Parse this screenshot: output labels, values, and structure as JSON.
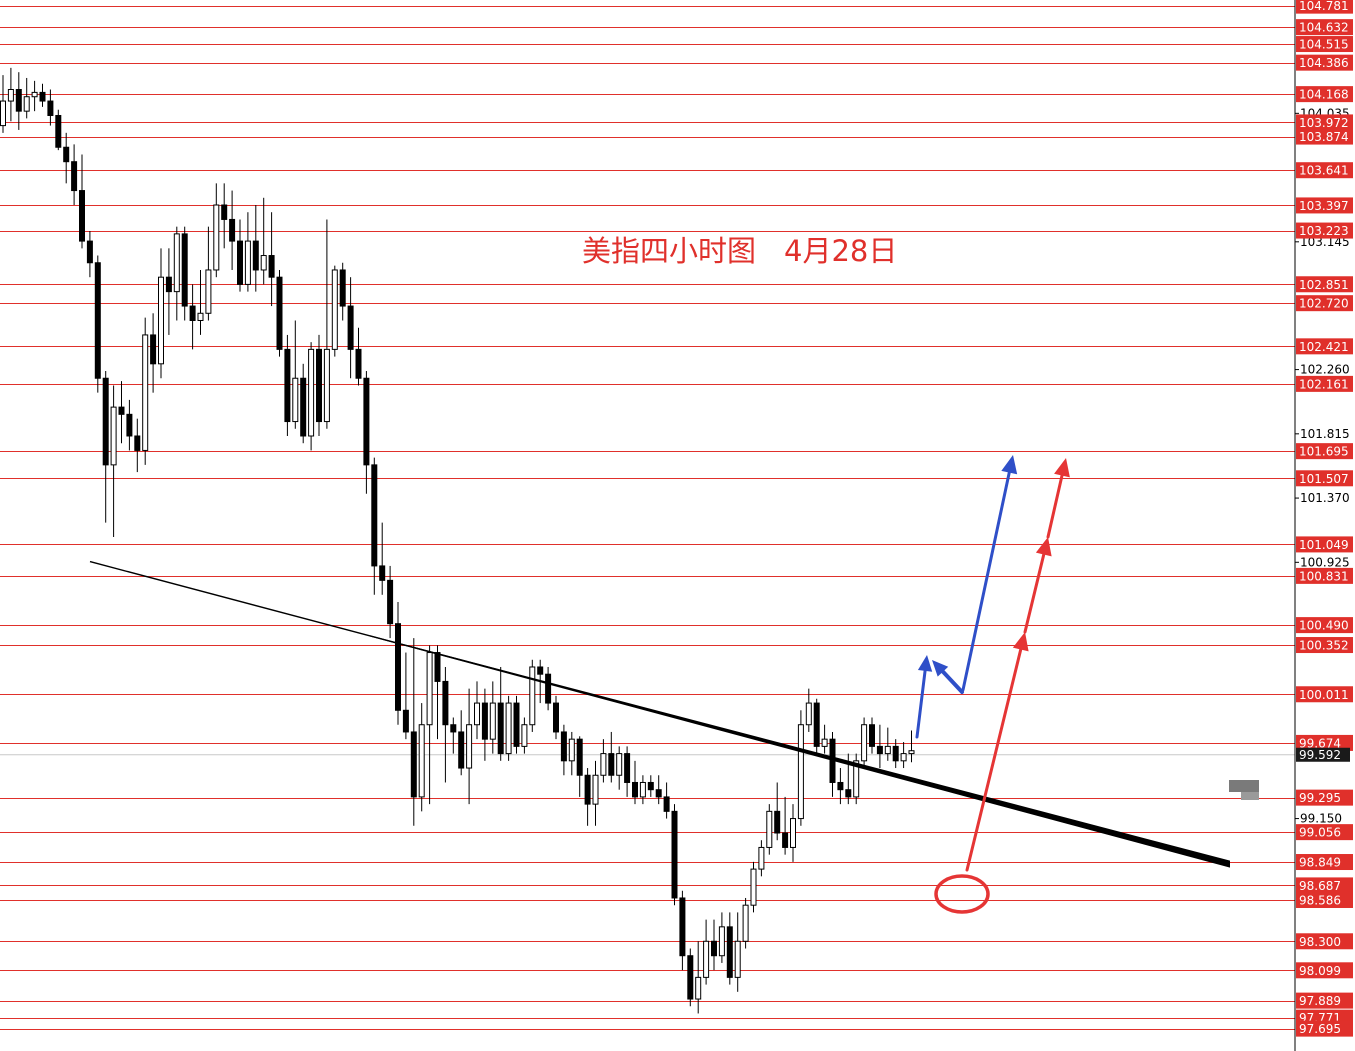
{
  "chart_data": {
    "type": "candlestick",
    "title": "美指四小时图",
    "subtitle": "4月28日",
    "ylim": [
      97.54,
      104.82
    ],
    "current_price": "99.592",
    "price_axis_ticks": [
      "104.035",
      "103.145",
      "102.260",
      "101.815",
      "101.370",
      "100.925",
      "99.150"
    ],
    "levels": [
      "104.781",
      "104.632",
      "104.515",
      "104.386",
      "104.168",
      "103.972",
      "103.874",
      "103.641",
      "103.397",
      "103.223",
      "102.851",
      "102.720",
      "102.421",
      "102.161",
      "101.695",
      "101.507",
      "101.049",
      "100.831",
      "100.490",
      "100.352",
      "100.011",
      "99.674",
      "99.295",
      "99.056",
      "98.849",
      "98.687",
      "98.586",
      "98.300",
      "98.099",
      "97.889",
      "97.771",
      "97.695"
    ],
    "trendline": {
      "from": [
        0,
        101.09
      ],
      "to": [
        115,
        99.42
      ]
    },
    "candles": [
      [
        103.95,
        104.12,
        103.9,
        104.3
      ],
      [
        104.12,
        104.2,
        103.98,
        104.35
      ],
      [
        104.2,
        104.05,
        103.92,
        104.32
      ],
      [
        104.05,
        104.15,
        104.0,
        104.28
      ],
      [
        104.15,
        104.18,
        104.05,
        104.26
      ],
      [
        104.18,
        104.12,
        104.08,
        104.24
      ],
      [
        104.12,
        104.02,
        103.95,
        104.2
      ],
      [
        104.02,
        103.8,
        103.78,
        104.06
      ],
      [
        103.8,
        103.7,
        103.55,
        103.9
      ],
      [
        103.7,
        103.5,
        103.4,
        103.82
      ],
      [
        103.5,
        103.15,
        103.1,
        103.75
      ],
      [
        103.15,
        103.0,
        102.9,
        103.22
      ],
      [
        103.0,
        102.2,
        102.1,
        103.05
      ],
      [
        102.2,
        101.6,
        101.2,
        102.25
      ],
      [
        101.6,
        102.0,
        101.1,
        102.15
      ],
      [
        102.0,
        101.95,
        101.75,
        102.18
      ],
      [
        101.95,
        101.8,
        101.7,
        102.05
      ],
      [
        101.8,
        101.7,
        101.55,
        101.92
      ],
      [
        101.7,
        102.5,
        101.6,
        102.62
      ],
      [
        102.5,
        102.3,
        102.1,
        102.65
      ],
      [
        102.3,
        102.9,
        102.2,
        103.1
      ],
      [
        102.9,
        102.8,
        102.5,
        103.1
      ],
      [
        102.8,
        103.2,
        102.6,
        103.25
      ],
      [
        103.2,
        102.7,
        102.6,
        103.25
      ],
      [
        102.7,
        102.6,
        102.4,
        102.85
      ],
      [
        102.6,
        102.65,
        102.5,
        102.95
      ],
      [
        102.65,
        102.95,
        102.6,
        103.25
      ],
      [
        102.95,
        103.4,
        102.9,
        103.55
      ],
      [
        103.4,
        103.3,
        103.1,
        103.55
      ],
      [
        103.3,
        103.15,
        102.95,
        103.5
      ],
      [
        103.15,
        102.85,
        102.8,
        103.3
      ],
      [
        102.85,
        103.15,
        102.8,
        103.35
      ],
      [
        103.15,
        102.95,
        102.8,
        103.4
      ],
      [
        102.95,
        103.05,
        102.85,
        103.45
      ],
      [
        103.05,
        102.9,
        102.7,
        103.35
      ],
      [
        102.9,
        102.4,
        102.35,
        102.95
      ],
      [
        102.4,
        101.9,
        101.8,
        102.5
      ],
      [
        101.9,
        102.2,
        101.85,
        102.6
      ],
      [
        102.2,
        101.8,
        101.75,
        102.3
      ],
      [
        101.8,
        102.4,
        101.7,
        102.45
      ],
      [
        102.4,
        101.9,
        101.8,
        102.5
      ],
      [
        101.9,
        102.4,
        101.85,
        103.3
      ],
      [
        102.4,
        102.95,
        102.35,
        102.98
      ],
      [
        102.95,
        102.7,
        102.6,
        103.0
      ],
      [
        102.7,
        102.4,
        102.2,
        102.9
      ],
      [
        102.4,
        102.2,
        102.15,
        102.55
      ],
      [
        102.2,
        101.6,
        101.4,
        102.25
      ],
      [
        101.6,
        100.9,
        100.7,
        101.65
      ],
      [
        100.9,
        100.8,
        100.7,
        101.2
      ],
      [
        100.8,
        100.5,
        100.4,
        100.9
      ],
      [
        100.5,
        99.9,
        99.8,
        100.65
      ],
      [
        99.9,
        99.75,
        99.7,
        100.3
      ],
      [
        99.75,
        99.3,
        99.1,
        100.4
      ],
      [
        99.3,
        99.8,
        99.2,
        99.95
      ],
      [
        99.8,
        100.3,
        99.25,
        100.35
      ],
      [
        100.3,
        100.1,
        99.7,
        100.35
      ],
      [
        100.1,
        99.8,
        99.4,
        100.2
      ],
      [
        99.8,
        99.75,
        99.6,
        99.85
      ],
      [
        99.75,
        99.5,
        99.45,
        99.9
      ],
      [
        99.5,
        99.8,
        99.25,
        100.05
      ],
      [
        99.8,
        99.95,
        99.7,
        100.1
      ],
      [
        99.95,
        99.7,
        99.55,
        100.05
      ],
      [
        99.7,
        99.95,
        99.6,
        100.1
      ],
      [
        99.95,
        99.6,
        99.55,
        100.2
      ],
      [
        99.6,
        99.95,
        99.55,
        100.0
      ],
      [
        99.95,
        99.65,
        99.6,
        100.0
      ],
      [
        99.65,
        99.8,
        99.6,
        99.85
      ],
      [
        99.8,
        100.2,
        99.75,
        100.25
      ],
      [
        100.2,
        100.15,
        99.95,
        100.25
      ],
      [
        100.15,
        99.95,
        99.9,
        100.2
      ],
      [
        99.95,
        99.75,
        99.7,
        100.0
      ],
      [
        99.75,
        99.55,
        99.45,
        99.8
      ],
      [
        99.55,
        99.7,
        99.45,
        99.75
      ],
      [
        99.7,
        99.45,
        99.3,
        99.72
      ],
      [
        99.45,
        99.25,
        99.1,
        99.5
      ],
      [
        99.25,
        99.45,
        99.1,
        99.55
      ],
      [
        99.45,
        99.6,
        99.4,
        99.7
      ],
      [
        99.6,
        99.45,
        99.4,
        99.75
      ],
      [
        99.45,
        99.6,
        99.35,
        99.65
      ],
      [
        99.6,
        99.4,
        99.3,
        99.65
      ],
      [
        99.4,
        99.3,
        99.25,
        99.55
      ],
      [
        99.3,
        99.4,
        99.25,
        99.45
      ],
      [
        99.4,
        99.35,
        99.3,
        99.45
      ],
      [
        99.35,
        99.3,
        99.25,
        99.45
      ],
      [
        99.3,
        99.2,
        99.15,
        99.4
      ],
      [
        99.2,
        98.6,
        98.55,
        99.25
      ],
      [
        98.6,
        98.2,
        98.1,
        98.65
      ],
      [
        98.2,
        97.9,
        97.85,
        98.25
      ],
      [
        97.9,
        98.05,
        97.8,
        98.3
      ],
      [
        98.05,
        98.3,
        98.0,
        98.45
      ],
      [
        98.3,
        98.2,
        98.1,
        98.45
      ],
      [
        98.2,
        98.4,
        98.15,
        98.5
      ],
      [
        98.4,
        98.05,
        98.0,
        98.5
      ],
      [
        98.05,
        98.3,
        97.95,
        98.5
      ],
      [
        98.3,
        98.55,
        98.25,
        98.6
      ],
      [
        98.55,
        98.8,
        98.5,
        98.85
      ],
      [
        98.8,
        98.95,
        98.75,
        99.0
      ],
      [
        98.95,
        99.2,
        98.9,
        99.25
      ],
      [
        99.2,
        99.05,
        99.0,
        99.4
      ],
      [
        99.05,
        98.95,
        98.9,
        99.3
      ],
      [
        98.95,
        99.15,
        98.85,
        99.25
      ],
      [
        99.15,
        99.8,
        99.1,
        99.9
      ],
      [
        99.8,
        99.95,
        99.75,
        100.05
      ],
      [
        99.95,
        99.65,
        99.6,
        99.98
      ],
      [
        99.65,
        99.7,
        99.6,
        99.8
      ],
      [
        99.7,
        99.4,
        99.3,
        99.75
      ],
      [
        99.4,
        99.35,
        99.25,
        99.5
      ],
      [
        99.35,
        99.3,
        99.25,
        99.6
      ],
      [
        99.3,
        99.55,
        99.25,
        99.6
      ],
      [
        99.55,
        99.8,
        99.5,
        99.85
      ],
      [
        99.8,
        99.65,
        99.6,
        99.85
      ],
      [
        99.65,
        99.6,
        99.5,
        99.8
      ],
      [
        99.6,
        99.65,
        99.55,
        99.78
      ],
      [
        99.65,
        99.55,
        99.5,
        99.7
      ],
      [
        99.55,
        99.6,
        99.5,
        99.68
      ],
      [
        99.6,
        99.62,
        99.54,
        99.76
      ]
    ]
  },
  "colors": {
    "level_line": "#e0302b",
    "level_label_bg": "#e0302b",
    "level_label_text": "#ffffff",
    "candle": "#000000",
    "trendline": "#000000",
    "blue_arrow": "#2f4fc8",
    "red_arrow": "#e53535",
    "title": "#e0302b",
    "price_tag_bg": "#1a1a1a"
  }
}
